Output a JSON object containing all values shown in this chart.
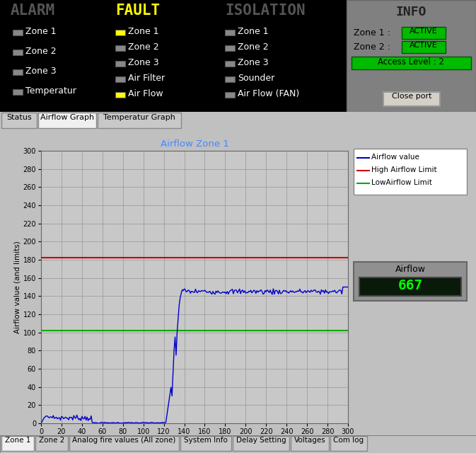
{
  "title": "Airflow Zone 1",
  "title_color": "#4488ff",
  "ylabel": "Airflow value (and limits)",
  "xlim": [
    0,
    300
  ],
  "ylim": [
    0,
    300
  ],
  "xticks": [
    0,
    20,
    40,
    60,
    80,
    100,
    120,
    140,
    160,
    180,
    200,
    220,
    240,
    260,
    280,
    300
  ],
  "yticks": [
    0,
    20,
    40,
    60,
    80,
    100,
    120,
    140,
    160,
    180,
    200,
    220,
    240,
    260,
    280,
    300
  ],
  "high_airflow_limit": 182,
  "low_airflow_limit": 102,
  "airflow_color": "#0000cc",
  "high_limit_color": "#cc0000",
  "low_limit_color": "#00aa00",
  "header_bg": "#000000",
  "info_bg": "#808080",
  "green_active": "#00bb00",
  "tab_area_bg": "#000000",
  "graph_area_bg": "#c0c0c0",
  "plot_bg": "#c8c8c8",
  "grid_color": "#aaaaaa",
  "bottom_tab_bg": "#c0c0c0",
  "legend_airflow": "Airflow value",
  "legend_high": "High Airflow Limit",
  "legend_low": "LowAirflow Limit",
  "display_value": "667",
  "tab_labels": [
    "Zone 1",
    "Zone 2",
    "Analog fire values (All zone)",
    "System Info",
    "Delay Setting",
    "Voltages",
    "Com log"
  ],
  "top_tabs": [
    "Status",
    "Airflow Graph",
    "Temperatur Graph"
  ],
  "alarm_items": [
    "Zone 1",
    "Zone 2",
    "Zone 3",
    "Temperatur"
  ],
  "fault_items": [
    "Zone 1",
    "Zone 2",
    "Zone 3",
    "Air Filter",
    "Air Flow"
  ],
  "fault_yellow": [
    "Zone 1",
    "Air Flow"
  ],
  "isolation_items": [
    "Zone 1",
    "Zone 2",
    "Zone 3",
    "Sounder",
    "Air Flow (FAN)"
  ],
  "info_access": "Access Level : 2",
  "airflow_x_flat_start": 0,
  "airflow_x_flat2": 50,
  "airflow_x_zero_start": 50,
  "airflow_x_zero_end": 122,
  "airflow_x_rise_end": 142,
  "airflow_x_flat_level": 145,
  "airflow_end": 300
}
